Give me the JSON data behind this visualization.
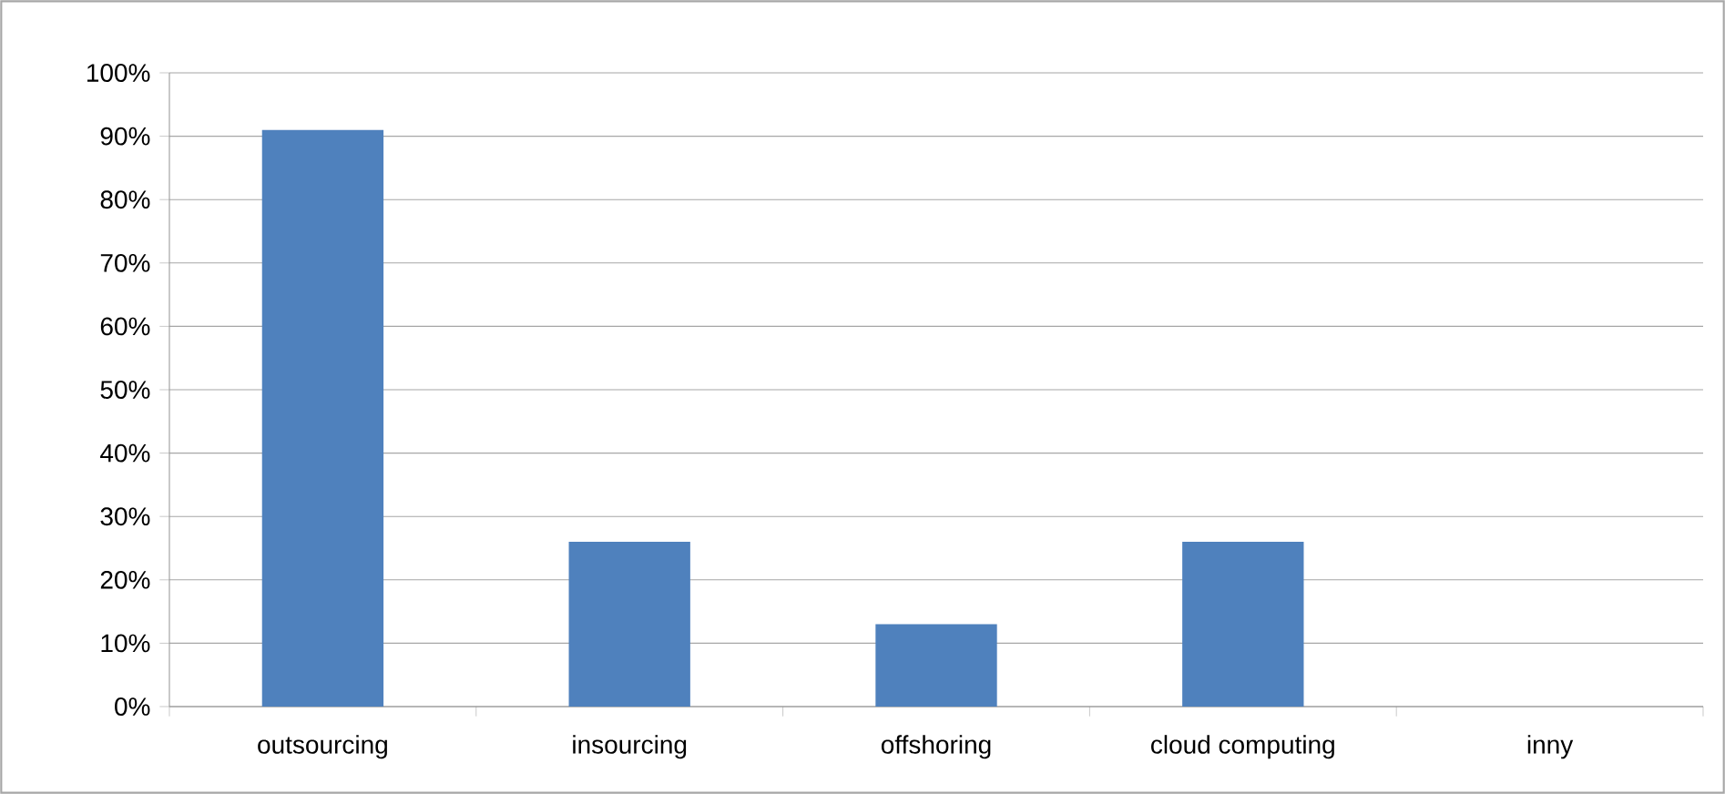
{
  "chart_data": {
    "type": "bar",
    "categories": [
      "outsourcing",
      "insourcing",
      "offshoring",
      "cloud computing",
      "inny"
    ],
    "values": [
      91,
      26,
      13,
      26,
      0
    ],
    "color": "#4f81bd",
    "ylim": [
      0,
      100
    ],
    "yticks": [
      {
        "value": 0,
        "label": "0%"
      },
      {
        "value": 10,
        "label": "10%"
      },
      {
        "value": 20,
        "label": "20%"
      },
      {
        "value": 30,
        "label": "30%"
      },
      {
        "value": 40,
        "label": "40%"
      },
      {
        "value": 50,
        "label": "50%"
      },
      {
        "value": 60,
        "label": "60%"
      },
      {
        "value": 70,
        "label": "70%"
      },
      {
        "value": 80,
        "label": "80%"
      },
      {
        "value": 90,
        "label": "90%"
      },
      {
        "value": 100,
        "label": "100%"
      }
    ],
    "grid": "y"
  }
}
